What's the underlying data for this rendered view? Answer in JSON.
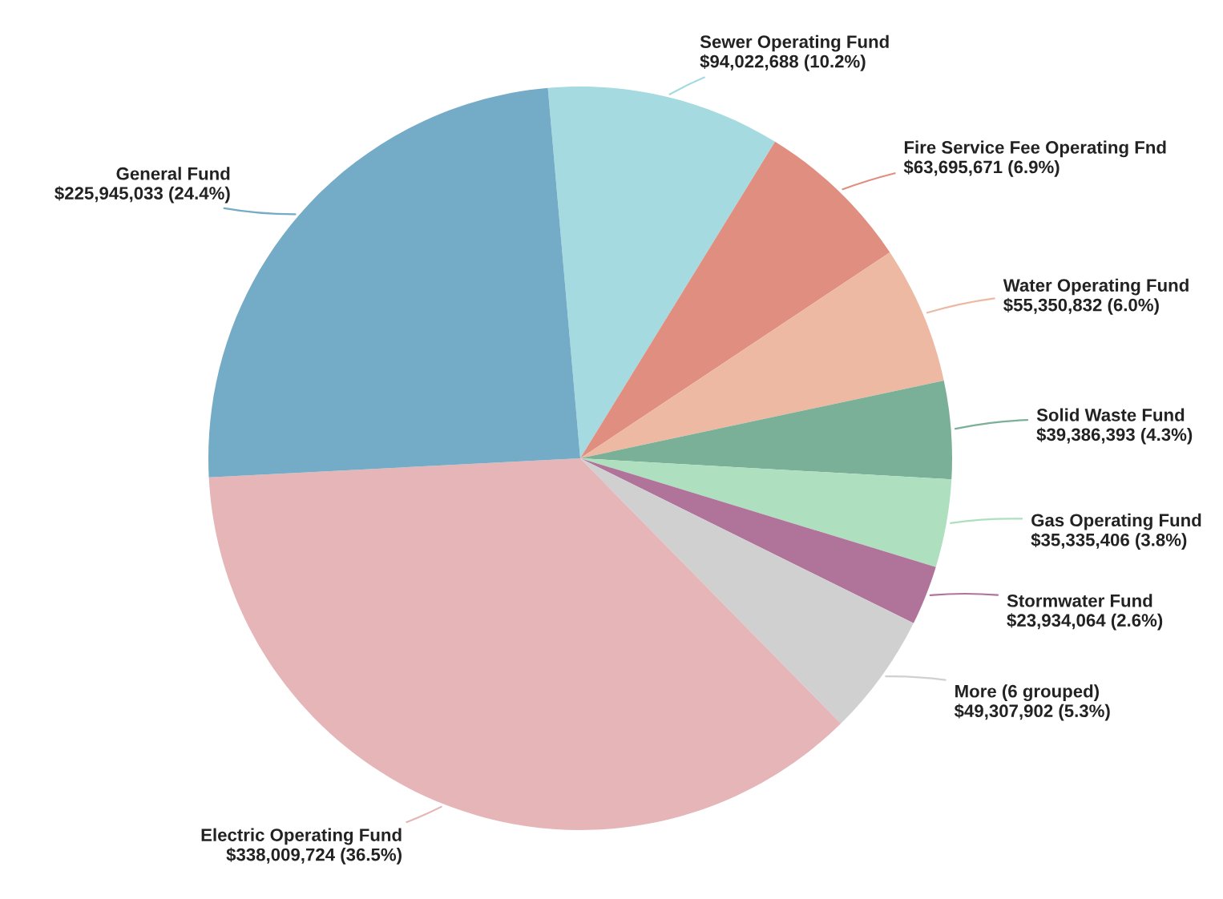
{
  "chart_data": {
    "type": "pie",
    "categories": [
      "Sewer Operating Fund",
      "Fire Service Fee Operating Fnd",
      "Water Operating Fund",
      "Solid Waste Fund",
      "Gas Operating Fund",
      "Stormwater Fund",
      "More (6 grouped)",
      "Electric Operating Fund",
      "General Fund"
    ],
    "values": [
      94022688,
      63695671,
      55350832,
      39386393,
      35335406,
      23934064,
      49307902,
      338009724,
      225945033
    ],
    "value_labels": [
      "$94,022,688 (10.2%)",
      "$63,695,671 (6.9%)",
      "$55,350,832 (6.0%)",
      "$39,386,393 (4.3%)",
      "$35,335,406 (3.8%)",
      "$23,934,064 (2.6%)",
      "$49,307,902 (5.3%)",
      "$338,009,724 (36.5%)",
      "$225,945,033 (24.4%)"
    ],
    "colors": [
      "#a5dbe0",
      "#e08e80",
      "#edb9a3",
      "#7bb098",
      "#aedfbf",
      "#b0739a",
      "#d0d0d0",
      "#e6b5b8",
      "#74abc6"
    ],
    "legend": false
  }
}
